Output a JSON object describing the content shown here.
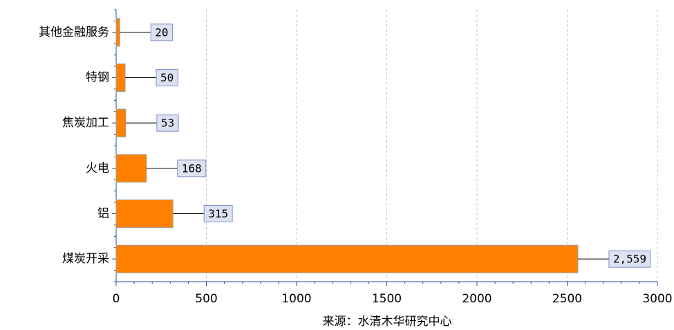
{
  "chart_data": {
    "type": "barh",
    "categories": [
      "其他金融服务",
      "特钢",
      "焦炭加工",
      "火电",
      "铝",
      "煤炭开采"
    ],
    "values": [
      20,
      50,
      53,
      168,
      315,
      2559
    ],
    "value_labels": [
      "20",
      "50",
      "53",
      "168",
      "315",
      "2,559"
    ],
    "color": "#ff8000",
    "xlabel": "来源：水清木华研究中心",
    "xlim": [
      0,
      3000
    ],
    "xticks": [
      0,
      500,
      1000,
      1500,
      2000,
      2500,
      3000
    ],
    "grid": true
  }
}
